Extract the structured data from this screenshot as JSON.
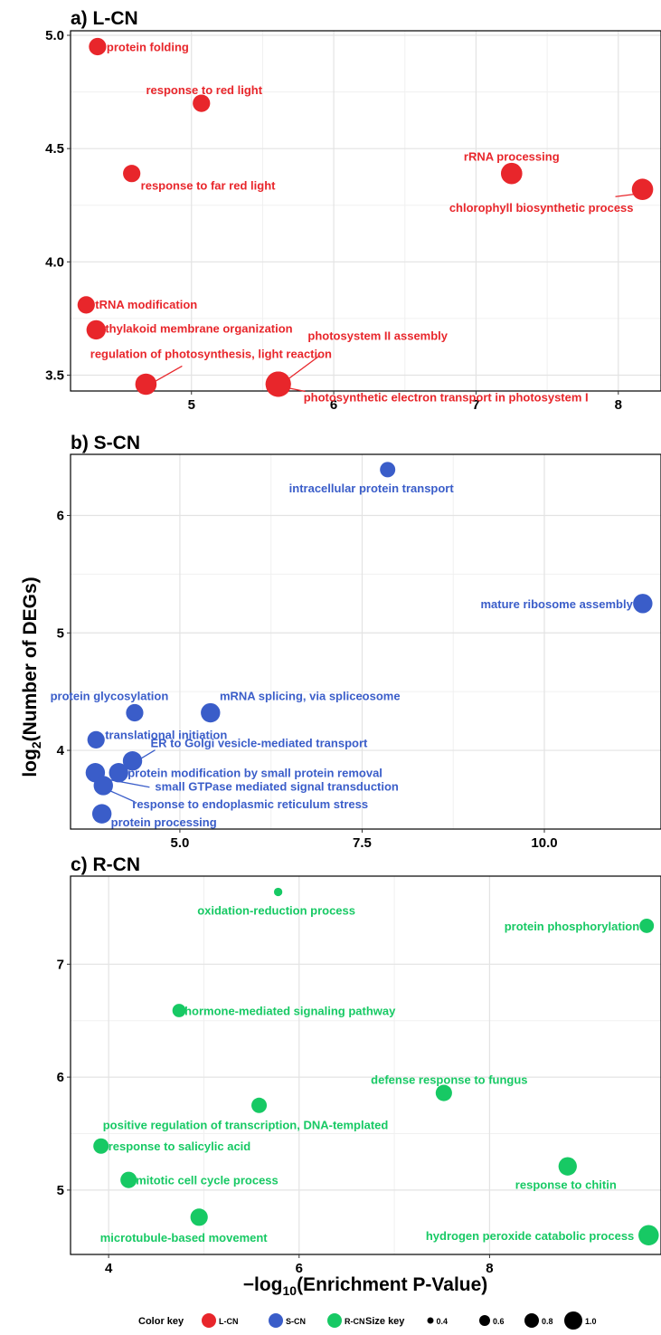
{
  "axes": {
    "ylabel": "log2(Number of DEGs)",
    "xlabel": "−log10(Enrichment P-Value)"
  },
  "legend": {
    "color_title": "Color key",
    "size_title": "Size key",
    "color_entries": [
      {
        "label": "L-CN",
        "color": "#e8262b"
      },
      {
        "label": "S-CN",
        "color": "#3a5dc9"
      },
      {
        "label": "R-CN",
        "color": "#17c964"
      }
    ],
    "size_entries": [
      "0.4",
      "0.6",
      "0.8",
      "1.0"
    ]
  },
  "chart_data": [
    {
      "type": "scatter",
      "title": "a) L-CN",
      "color": "#e8262b",
      "xlim": [
        4.15,
        8.3
      ],
      "ylim": [
        3.43,
        5.02
      ],
      "xticks": [
        5,
        6,
        7,
        8
      ],
      "yticks": [
        3.5,
        4.0,
        4.5,
        5.0
      ],
      "ytick_labels": [
        "3.5",
        "4.0",
        "4.5",
        "5.0"
      ],
      "points": [
        {
          "label": "protein folding",
          "x": 4.34,
          "y": 4.95,
          "size": 0.6
        },
        {
          "label": "response to red light",
          "x": 5.07,
          "y": 4.7,
          "size": 0.6
        },
        {
          "label": "response to far red light",
          "x": 4.58,
          "y": 4.39,
          "size": 0.6
        },
        {
          "label": "rRNA processing",
          "x": 7.25,
          "y": 4.39,
          "size": 0.8
        },
        {
          "label": "chlorophyll biosynthetic process",
          "x": 8.17,
          "y": 4.32,
          "size": 0.8
        },
        {
          "label": "tRNA modification",
          "x": 4.26,
          "y": 3.81,
          "size": 0.6
        },
        {
          "label": "thylakoid membrane organization",
          "x": 4.33,
          "y": 3.7,
          "size": 0.7
        },
        {
          "label": "regulation of photosynthesis, light reaction",
          "x": 4.68,
          "y": 3.46,
          "size": 0.8
        },
        {
          "label": "photosystem II assembly",
          "x": 5.61,
          "y": 3.46,
          "size": 1.0
        },
        {
          "label": "photosynthetic electron transport in photosystem I",
          "x": 5.61,
          "y": 3.46,
          "size": 1.0
        }
      ]
    },
    {
      "type": "scatter",
      "title": "b) S-CN",
      "color": "#3a5dc9",
      "xlim": [
        3.5,
        11.6
      ],
      "ylim": [
        3.33,
        6.52
      ],
      "xticks": [
        5.0,
        7.5,
        10.0
      ],
      "xtick_labels": [
        "5.0",
        "7.5",
        "10.0"
      ],
      "yticks": [
        4,
        5,
        6
      ],
      "points": [
        {
          "label": "intracellular protein transport",
          "x": 7.85,
          "y": 6.39,
          "size": 0.5
        },
        {
          "label": "mature ribosome assembly",
          "x": 11.35,
          "y": 5.25,
          "size": 0.7
        },
        {
          "label": "protein glycosylation",
          "x": 4.38,
          "y": 4.32,
          "size": 0.6
        },
        {
          "label": "mRNA splicing, via spliceosome",
          "x": 5.42,
          "y": 4.32,
          "size": 0.7
        },
        {
          "label": "translational initiation",
          "x": 3.85,
          "y": 4.09,
          "size": 0.6
        },
        {
          "label": "ER to Golgi vesicle-mediated transport",
          "x": 4.35,
          "y": 3.91,
          "size": 0.7
        },
        {
          "label": "protein modification by small protein removal",
          "x": 4.16,
          "y": 3.81,
          "size": 0.7
        },
        {
          "label": "small GTPase mediated signal transduction",
          "x": 3.84,
          "y": 3.81,
          "size": 0.7
        },
        {
          "label": "response to endoplasmic reticulum stress",
          "x": 3.95,
          "y": 3.7,
          "size": 0.7
        },
        {
          "label": "protein processing",
          "x": 3.93,
          "y": 3.46,
          "size": 0.7
        }
      ]
    },
    {
      "type": "scatter",
      "title": "c) R-CN",
      "color": "#17c964",
      "xlim": [
        3.6,
        9.8
      ],
      "ylim": [
        4.43,
        7.78
      ],
      "xticks": [
        4,
        6,
        8
      ],
      "yticks": [
        5,
        6,
        7
      ],
      "points": [
        {
          "label": "oxidation-reduction process",
          "x": 5.78,
          "y": 7.64,
          "size": 0.15
        },
        {
          "label": "protein phosphorylation",
          "x": 9.65,
          "y": 7.34,
          "size": 0.45
        },
        {
          "label": "hormone-mediated signaling pathway",
          "x": 4.74,
          "y": 6.59,
          "size": 0.4
        },
        {
          "label": "defense response to fungus",
          "x": 7.52,
          "y": 5.86,
          "size": 0.55
        },
        {
          "label": "positive regulation of transcription, DNA-templated",
          "x": 5.58,
          "y": 5.75,
          "size": 0.5
        },
        {
          "label": "response to salicylic acid",
          "x": 3.92,
          "y": 5.39,
          "size": 0.5
        },
        {
          "label": "response to chitin",
          "x": 8.82,
          "y": 5.21,
          "size": 0.65
        },
        {
          "label": "mitotic cell cycle process",
          "x": 4.21,
          "y": 5.09,
          "size": 0.55
        },
        {
          "label": "microtubule-based movement",
          "x": 4.95,
          "y": 4.76,
          "size": 0.6
        },
        {
          "label": "hydrogen peroxide catabolic process",
          "x": 9.67,
          "y": 4.6,
          "size": 0.75
        }
      ]
    }
  ]
}
